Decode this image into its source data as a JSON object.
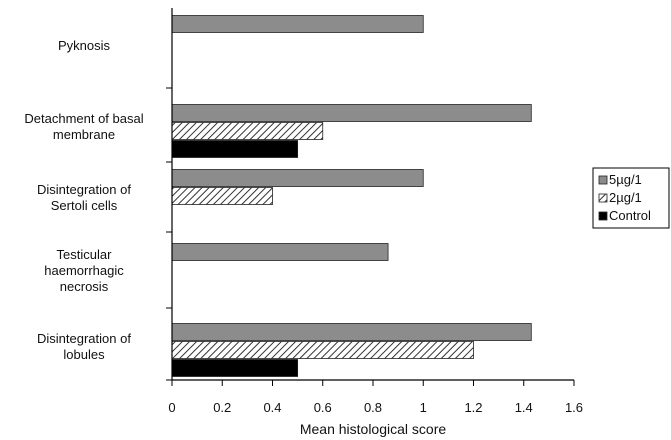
{
  "chart_data": {
    "type": "bar",
    "orientation": "horizontal",
    "categories": [
      [
        "Pyknosis"
      ],
      [
        "Detachment of  basal",
        "membrane"
      ],
      [
        "Disintegration of",
        "Sertoli cells"
      ],
      [
        "Testicular",
        "haemorrhagic",
        "necrosis"
      ],
      [
        "Disintegration of",
        "lobules"
      ]
    ],
    "series": [
      {
        "name": "5µg/1",
        "values": [
          1.0,
          1.43,
          1.0,
          0.86,
          1.43
        ],
        "color": "#8c8c8c",
        "pattern": "solid-gray"
      },
      {
        "name": "2µg/1",
        "values": [
          0,
          0.6,
          0.4,
          0,
          1.2
        ],
        "color": "#555555",
        "pattern": "diagonal-hatch"
      },
      {
        "name": "Control",
        "values": [
          0,
          0.5,
          0,
          0,
          0.5
        ],
        "color": "#000000",
        "pattern": "solid-black"
      }
    ],
    "xlabel": "Mean histological score",
    "xlim": [
      0,
      1.6
    ],
    "xticks": [
      "0",
      "0.2",
      "0.4",
      "0.6",
      "0.8",
      "1",
      "1.2",
      "1.4",
      "1.6"
    ],
    "grid": false,
    "legend_position": "right"
  }
}
